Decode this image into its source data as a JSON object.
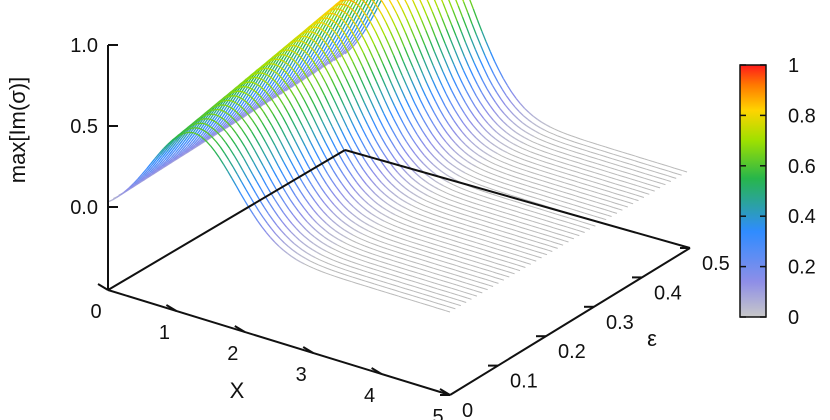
{
  "chart_data": {
    "type": "surface",
    "zlabel": "max[Im(σ)]",
    "xlabel": "X",
    "ylabel": "ε",
    "x_ticks": [
      "0",
      "1",
      "2",
      "3",
      "4",
      "5"
    ],
    "y_ticks": [
      "0",
      "0.1",
      "0.2",
      "0.3",
      "0.4",
      "0.5"
    ],
    "z_ticks": [
      "0.0",
      "0.5",
      "1.0"
    ],
    "xlim": [
      0,
      5
    ],
    "ylim": [
      0,
      0.5
    ],
    "zlim": [
      -0.5,
      1.0
    ],
    "colorbar": {
      "ticks": [
        "0",
        "0.2",
        "0.4",
        "0.6",
        "0.8",
        "1"
      ],
      "range": [
        0,
        1
      ],
      "colors": [
        "#c8c8c8",
        "#7f7fe0",
        "#2f8cff",
        "#27b64b",
        "#9ee000",
        "#ffd400",
        "#ff7a00",
        "#ff1a1a"
      ]
    },
    "surface_profile": {
      "x": [
        0,
        0.5,
        1,
        1.5,
        2,
        2.5,
        3,
        3.5,
        4,
        4.5,
        5
      ],
      "z_at_eps_0": [
        0.1,
        0.45,
        0.62,
        0.55,
        0.25,
        0,
        0,
        0,
        0,
        0,
        0
      ],
      "z_at_eps_0.5": [
        0.1,
        0.7,
        1.0,
        0.93,
        0.5,
        0.05,
        0,
        0,
        0,
        0,
        0
      ]
    }
  }
}
